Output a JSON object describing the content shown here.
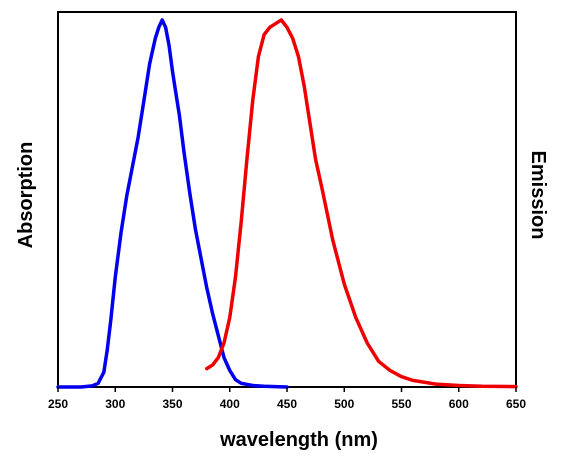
{
  "chart_data": {
    "type": "line",
    "xlabel": "wavelength (nm)",
    "ylabel_left": "Absorption",
    "ylabel_right": "Emission",
    "xlim": [
      250,
      650
    ],
    "ylim": [
      0,
      1
    ],
    "x_ticks": [
      250,
      300,
      350,
      400,
      450,
      500,
      550,
      600,
      650
    ],
    "y_ticks_shown": false,
    "grid": false,
    "legend": "none",
    "series": [
      {
        "color": "#0000ee",
        "x": [
          250,
          270,
          280,
          285,
          290,
          293,
          296,
          300,
          305,
          310,
          315,
          320,
          325,
          330,
          335,
          338,
          341,
          344,
          347,
          350,
          353,
          356,
          360,
          365,
          370,
          375,
          380,
          385,
          390,
          395,
          400,
          405,
          410,
          420,
          430,
          440,
          450
        ],
        "y": [
          0,
          0,
          0.003,
          0.01,
          0.04,
          0.1,
          0.18,
          0.3,
          0.42,
          0.52,
          0.6,
          0.68,
          0.78,
          0.88,
          0.95,
          0.98,
          1.0,
          0.98,
          0.93,
          0.86,
          0.8,
          0.74,
          0.64,
          0.53,
          0.43,
          0.35,
          0.27,
          0.2,
          0.14,
          0.08,
          0.045,
          0.02,
          0.01,
          0.004,
          0.002,
          0.001,
          0
        ]
      },
      {
        "color": "#ee0000",
        "x": [
          380,
          385,
          390,
          395,
          400,
          405,
          410,
          415,
          420,
          425,
          430,
          435,
          440,
          445,
          450,
          455,
          460,
          465,
          470,
          475,
          480,
          490,
          500,
          510,
          520,
          530,
          540,
          550,
          560,
          580,
          600,
          620,
          650
        ],
        "y": [
          0.05,
          0.06,
          0.08,
          0.12,
          0.19,
          0.3,
          0.45,
          0.62,
          0.78,
          0.9,
          0.96,
          0.98,
          0.99,
          1.0,
          0.98,
          0.95,
          0.9,
          0.82,
          0.72,
          0.62,
          0.55,
          0.4,
          0.28,
          0.19,
          0.12,
          0.07,
          0.045,
          0.028,
          0.018,
          0.008,
          0.004,
          0.002,
          0.001
        ]
      }
    ]
  }
}
